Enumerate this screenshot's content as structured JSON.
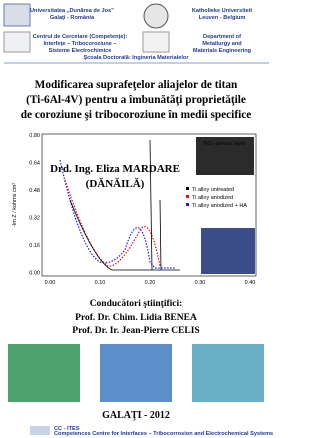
{
  "header": {
    "left_university": [
      "Universitatea „Dunărea de Jos”",
      "Galaţi - România"
    ],
    "right_university": [
      "Katholieke Universiteit",
      "Leuven - Belgium"
    ],
    "left_center": [
      "Centrul de Cercetare (Competenţe):",
      "Interfeţe – Tribocoroziune –",
      "Sisteme Electrochimice"
    ],
    "right_department": [
      "Department of",
      "Metallurgy and",
      "Materials Engineering"
    ],
    "doctoral_school": "Şcoala Doctorală: Ingineria Materialelor"
  },
  "title": [
    "Modificarea suprafeţelor aliajelor de titan",
    "(Ti-6Al-4V) pentru a îmbunătăţi proprietăţile",
    "de coroziune şi tribocoroziune în medii specifice"
  ],
  "author": [
    "Drd. Ing. Eliza MARDARE",
    "(DĂNĂILĂ)"
  ],
  "figure": {
    "y_label": "-Im Z / kohms cm²",
    "yticks": [
      "0.80",
      "0.64",
      "0.48",
      "0.32",
      "0.16",
      "0.00"
    ],
    "xticks": [
      "0.00",
      "0.10",
      "0.20",
      "0.30",
      "0.40"
    ],
    "inset_label": "TiO₂ porous layer",
    "legend": [
      "Ti alloy untreated",
      "Ti alloy anodized",
      "Ti alloy anodized + HA"
    ]
  },
  "supervisors": {
    "heading": "Conducători ştiinţifici:",
    "names": [
      "Prof. Dr. Chim. Lidia BENEA",
      "Prof. Dr. Ir. Jean-Pierre CELIS"
    ]
  },
  "place_year": "GALAŢI - 2012",
  "footer": [
    "CC - ITES",
    "Competences Centre for Interfaces – Tribocorrosion and Electrochemical Systems"
  ]
}
